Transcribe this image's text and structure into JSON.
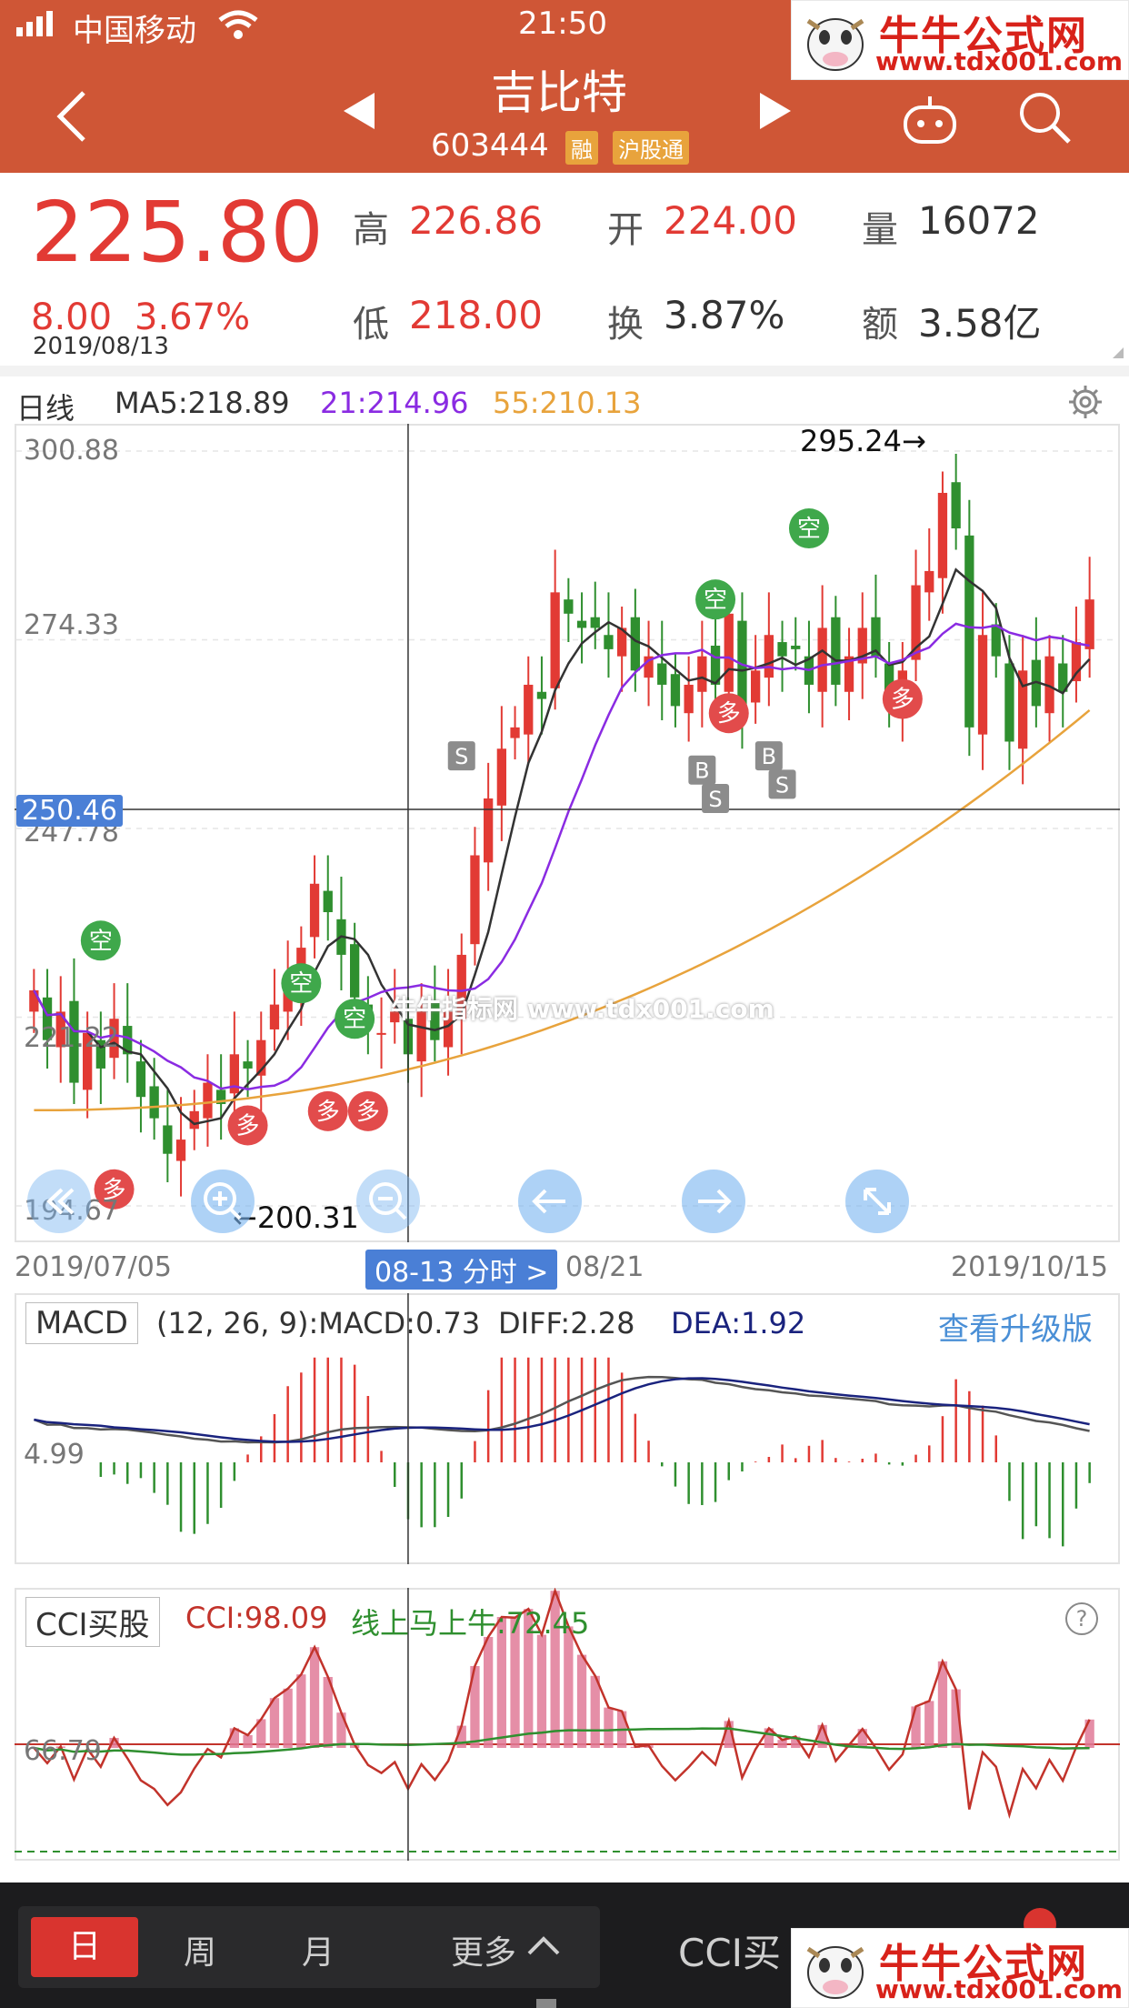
{
  "status": {
    "carrier": "中国移动",
    "time": "21:50"
  },
  "header": {
    "title": "吉比特",
    "code": "603444",
    "tags": [
      "融",
      "沪股通"
    ]
  },
  "watermark": {
    "title": "牛牛公式网",
    "url": "www.tdx001.com"
  },
  "quote": {
    "price": "225.80",
    "change": "8.00",
    "change_pct": "3.67%",
    "date": "2019/08/13",
    "high_label": "高",
    "high": "226.86",
    "open_label": "开",
    "open": "224.00",
    "volume_label": "量",
    "volume": "16072",
    "low_label": "低",
    "low": "218.00",
    "turnover_label": "换",
    "turnover": "3.87%",
    "amount_label": "额",
    "amount": "3.58亿"
  },
  "kline": {
    "period_label": "日线",
    "ma5": "MA5:218.89",
    "ma21": "21:214.96",
    "ma55": "55:210.13",
    "y_ticks": [
      "300.88",
      "274.33",
      "247.78",
      "221.22",
      "194.67"
    ],
    "crosshair_price": "250.46",
    "max_label": "295.24→",
    "min_label": "←200.31",
    "x_start": "2019/07/05",
    "x_cursor": "08-13 分时 >",
    "x_mid": "08/21",
    "x_end": "2019/10/15",
    "overlay_text": "牛牛指标网 www.tdx001.com",
    "signal_short": "空",
    "signal_long": "多",
    "signal_b": "B",
    "signal_s": "S"
  },
  "macd": {
    "name": "MACD",
    "params": "(12, 26, 9):MACD:0.73",
    "diff": "DIFF:2.28",
    "dea": "DEA:1.92",
    "upgrade": "查看升级版",
    "level": "4.99"
  },
  "cci": {
    "name": "CCI买股",
    "value": "CCI:98.09",
    "line": "线上马上牛:72.45",
    "level": "66.79",
    "help": "?"
  },
  "bottom": {
    "tabs": [
      "日",
      "周",
      "月"
    ],
    "more": "更多",
    "indicator": "CCI买"
  },
  "colors": {
    "header": "#cf5636",
    "up": "#e23a34",
    "down": "#2f8f2f",
    "ma21": "#8a2be2",
    "ma55": "#e8a33c",
    "dea": "#1a237e",
    "bottom": "#1c1c1e"
  },
  "chart_data": {
    "type": "candlestick",
    "ylim": [
      194.67,
      300.88
    ],
    "close": [
      225,
      218,
      222,
      212,
      219,
      214,
      221,
      216,
      210,
      207,
      202,
      204,
      208,
      212,
      209,
      216,
      214,
      218,
      223,
      226,
      231,
      240,
      236,
      230,
      224,
      220,
      219,
      222,
      216,
      222,
      218,
      222,
      230,
      244,
      252,
      259,
      262,
      268,
      266,
      281,
      278,
      276,
      276,
      273,
      276,
      270,
      272,
      268,
      265,
      268,
      272,
      268,
      278,
      264,
      270,
      275,
      272,
      273,
      268,
      276,
      268,
      272,
      276,
      272,
      266,
      270,
      282,
      284,
      295,
      290,
      262,
      275,
      272,
      260,
      270,
      265,
      272,
      267,
      274,
      280
    ],
    "ma21_level": 214.96,
    "ma55_level": 210.13
  }
}
